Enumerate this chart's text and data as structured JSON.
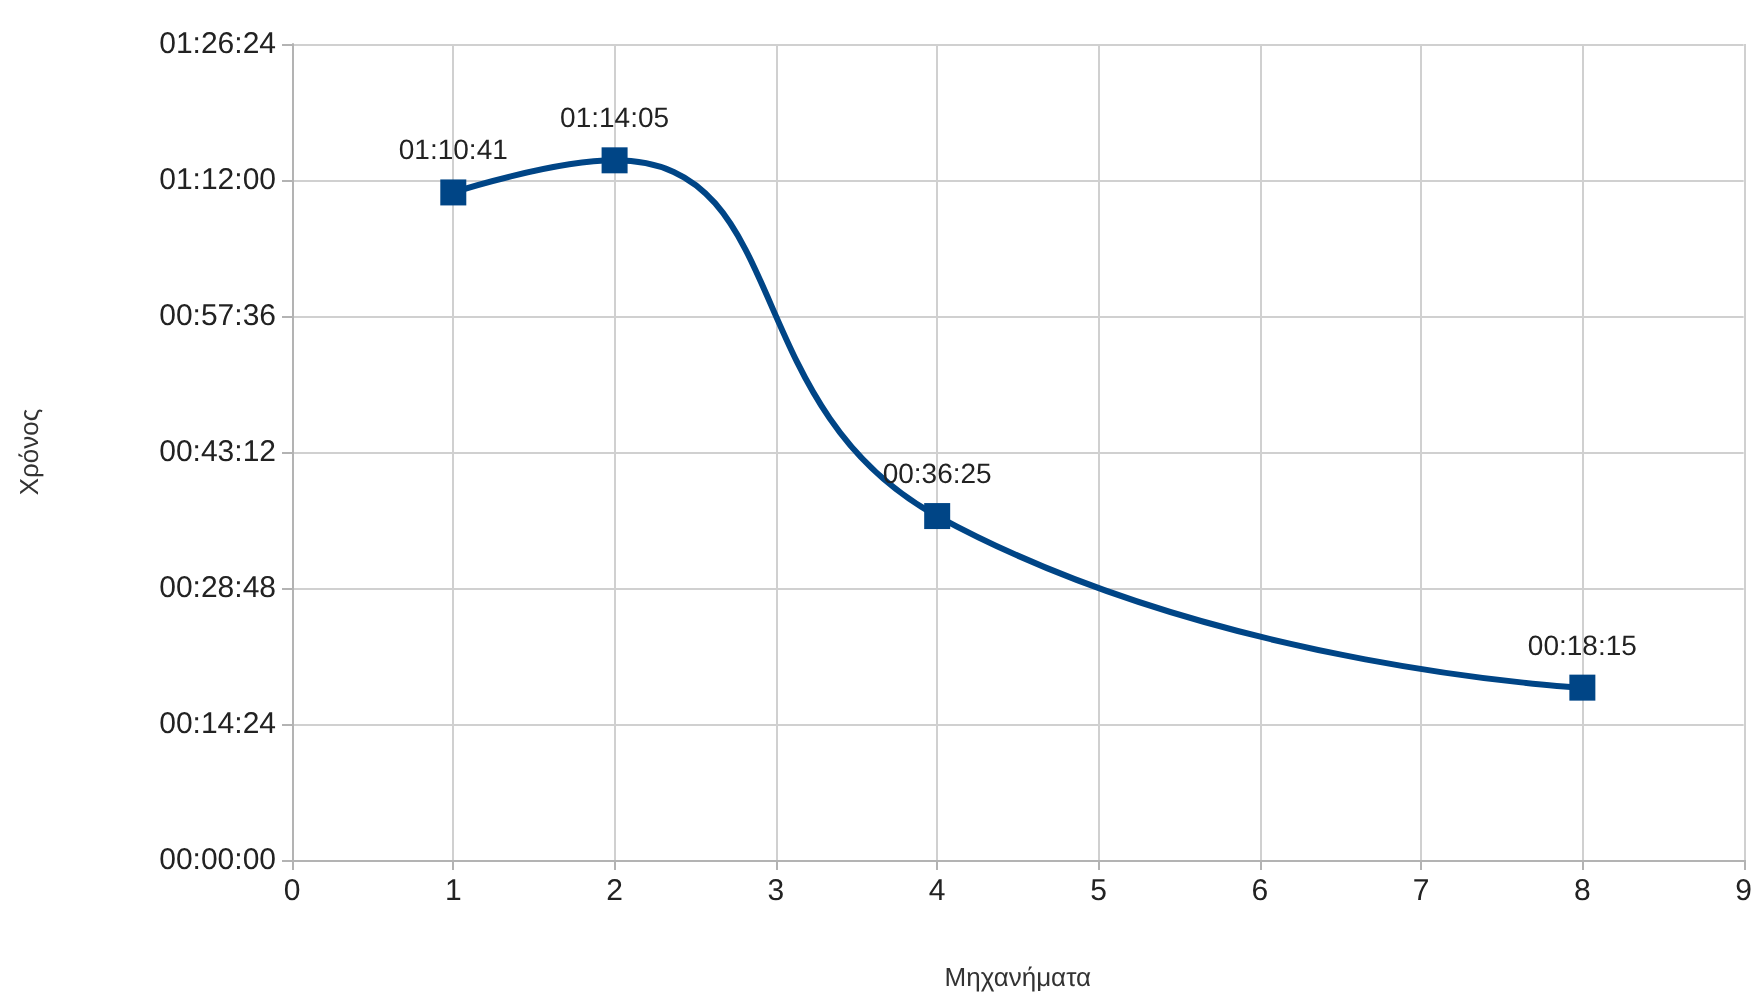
{
  "chart_data": {
    "type": "line",
    "xlabel": "Μηχανήματα",
    "ylabel": "Χρόνος",
    "x": [
      1,
      2,
      4,
      8
    ],
    "series": [
      {
        "color": "#004586",
        "values": [
          1.178056,
          1.234722,
          0.606944,
          0.304167
        ],
        "value_labels": [
          "01:10:41",
          "01:14:05",
          "00:36:25",
          "00:18:15"
        ]
      }
    ],
    "xlim": [
      0,
      9
    ],
    "xticks": [
      0,
      1,
      2,
      3,
      4,
      5,
      6,
      7,
      8,
      9
    ],
    "ylim": [
      0,
      1.44
    ],
    "yticks": [
      {
        "value": 0,
        "label": "00:00:00"
      },
      {
        "value": 0.24,
        "label": "00:14:24"
      },
      {
        "value": 0.48,
        "label": "00:28:48"
      },
      {
        "value": 0.72,
        "label": "00:43:12"
      },
      {
        "value": 0.96,
        "label": "00:57:36"
      },
      {
        "value": 1.2,
        "label": "01:12:00"
      },
      {
        "value": 1.44,
        "label": "01:26:24"
      }
    ],
    "grid": true,
    "marker": "square",
    "line_style": "solid"
  }
}
